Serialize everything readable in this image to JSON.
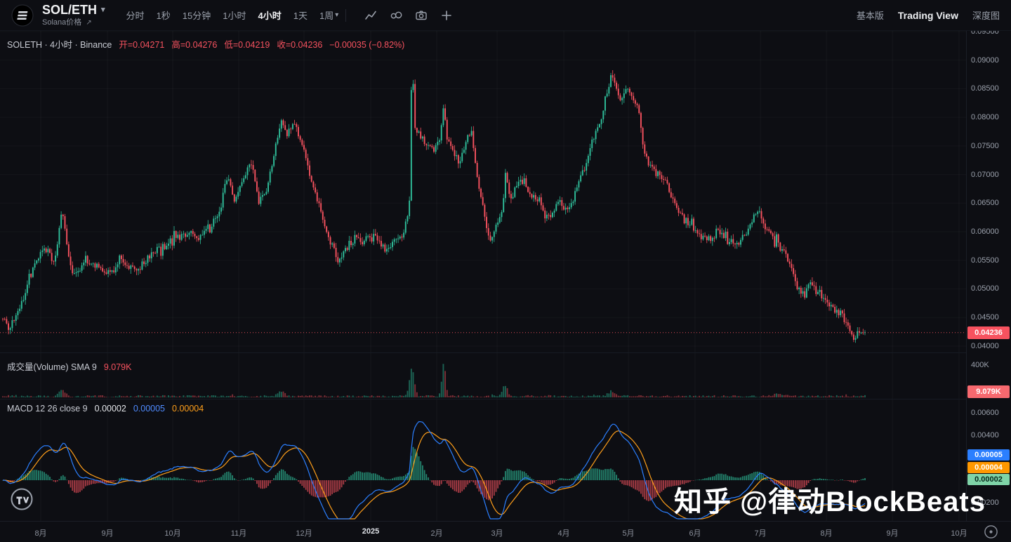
{
  "toolbar": {
    "symbol": "SOL/ETH",
    "symbol_caret": "▾",
    "subtitle": "Solana价格",
    "subtitle_arrow": "↗",
    "timeframes": [
      "分时",
      "1秒",
      "15分钟",
      "1小时",
      "4小时",
      "1天",
      "1周"
    ],
    "active_timeframe": "4小时",
    "timeframe_caret": "▾",
    "right_links": [
      "基本版",
      "Trading View",
      "深度图"
    ]
  },
  "legend": {
    "main": {
      "title": "SOLETH · 4小时 · Binance",
      "open": "开=0.04271",
      "high": "高=0.04276",
      "low": "低=0.04219",
      "close": "收=0.04236",
      "change": "−0.00035 (−0.82%)"
    },
    "volume": {
      "title": "成交量(Volume) SMA 9",
      "value": "9.079K"
    },
    "macd": {
      "title": "MACD 12 26 close 9",
      "hist": "0.00002",
      "macd": "0.00005",
      "signal": "0.00004"
    }
  },
  "axes": {
    "price_ticks": [
      "0.09500",
      "0.09000",
      "0.08500",
      "0.08000",
      "0.07500",
      "0.07000",
      "0.06500",
      "0.06000",
      "0.05500",
      "0.05000",
      "0.04500",
      "0.04000"
    ],
    "volume_tick": "400K",
    "macd_ticks": [
      "0.00600",
      "0.00400",
      "0.00200"
    ],
    "time_labels": [
      "8月",
      "9月",
      "10月",
      "11月",
      "12月",
      "2025",
      "2月",
      "3月",
      "4月",
      "5月",
      "6月",
      "7月",
      "8月",
      "9月",
      "10月"
    ]
  },
  "badges": {
    "price": "0.04236",
    "volume": "9.079K",
    "macd_line": "0.00005",
    "macd_signal": "0.00004",
    "macd_hist": "0.00002"
  },
  "watermark": "知乎 @律动BlockBeats",
  "colors": {
    "up": "#2fbf9b",
    "down": "#f7525f",
    "macd_line": "#2b7fff",
    "signal_line": "#ff9f1a",
    "hist_up": "#2fbf9b",
    "hist_down": "#f7525f",
    "price_badge": "#f7525f",
    "volume_badge": "#f7696f",
    "macd_badge": "#2b7fff",
    "signal_badge": "#ff9800",
    "hist_badge": "#7fd4a8",
    "hist_badge_text": "#06281b",
    "current_price_line": "#f7525f"
  },
  "chart_data": {
    "type": "candlestick",
    "symbol": "SOLETH",
    "interval": "4小时",
    "exchange": "Binance",
    "panes": [
      "price",
      "volume",
      "macd"
    ],
    "price_range": [
      0.04,
      0.095
    ],
    "last_price": 0.04236,
    "ohlc_last": {
      "open": 0.04271,
      "high": 0.04276,
      "low": 0.04219,
      "close": 0.04236,
      "change": -0.00035,
      "change_pct": -0.82
    },
    "candle_count": 459,
    "anchors": [
      [
        0.0,
        0.0448
      ],
      [
        0.008,
        0.0432
      ],
      [
        0.02,
        0.0465
      ],
      [
        0.034,
        0.054
      ],
      [
        0.048,
        0.0575
      ],
      [
        0.06,
        0.0545
      ],
      [
        0.069,
        0.0638
      ],
      [
        0.076,
        0.0555
      ],
      [
        0.082,
        0.052
      ],
      [
        0.095,
        0.0552
      ],
      [
        0.11,
        0.0542
      ],
      [
        0.125,
        0.0528
      ],
      [
        0.14,
        0.055
      ],
      [
        0.155,
        0.0528
      ],
      [
        0.17,
        0.056
      ],
      [
        0.185,
        0.0572
      ],
      [
        0.2,
        0.059
      ],
      [
        0.215,
        0.0598
      ],
      [
        0.228,
        0.0588
      ],
      [
        0.24,
        0.0605
      ],
      [
        0.252,
        0.064
      ],
      [
        0.26,
        0.0698
      ],
      [
        0.268,
        0.0652
      ],
      [
        0.277,
        0.069
      ],
      [
        0.288,
        0.072
      ],
      [
        0.297,
        0.0655
      ],
      [
        0.307,
        0.068
      ],
      [
        0.318,
        0.076
      ],
      [
        0.323,
        0.0798
      ],
      [
        0.33,
        0.077
      ],
      [
        0.338,
        0.0795
      ],
      [
        0.348,
        0.0745
      ],
      [
        0.358,
        0.069
      ],
      [
        0.367,
        0.0648
      ],
      [
        0.378,
        0.059
      ],
      [
        0.388,
        0.0545
      ],
      [
        0.398,
        0.0572
      ],
      [
        0.41,
        0.0592
      ],
      [
        0.422,
        0.0585
      ],
      [
        0.432,
        0.0592
      ],
      [
        0.444,
        0.0565
      ],
      [
        0.455,
        0.0583
      ],
      [
        0.465,
        0.06
      ],
      [
        0.4715,
        0.0638
      ],
      [
        0.4745,
        0.0905
      ],
      [
        0.478,
        0.0788
      ],
      [
        0.484,
        0.0768
      ],
      [
        0.492,
        0.0752
      ],
      [
        0.5,
        0.0742
      ],
      [
        0.509,
        0.0775
      ],
      [
        0.5115,
        0.0825
      ],
      [
        0.515,
        0.0762
      ],
      [
        0.522,
        0.0742
      ],
      [
        0.53,
        0.0718
      ],
      [
        0.538,
        0.076
      ],
      [
        0.544,
        0.0772
      ],
      [
        0.552,
        0.0672
      ],
      [
        0.558,
        0.0638
      ],
      [
        0.565,
        0.0578
      ],
      [
        0.572,
        0.0608
      ],
      [
        0.58,
        0.0642
      ],
      [
        0.5825,
        0.07
      ],
      [
        0.588,
        0.0658
      ],
      [
        0.596,
        0.0678
      ],
      [
        0.604,
        0.0692
      ],
      [
        0.612,
        0.0662
      ],
      [
        0.62,
        0.0655
      ],
      [
        0.628,
        0.0628
      ],
      [
        0.636,
        0.0622
      ],
      [
        0.645,
        0.0658
      ],
      [
        0.652,
        0.0642
      ],
      [
        0.66,
        0.0645
      ],
      [
        0.668,
        0.069
      ],
      [
        0.676,
        0.0715
      ],
      [
        0.684,
        0.0758
      ],
      [
        0.693,
        0.079
      ],
      [
        0.7,
        0.0835
      ],
      [
        0.706,
        0.0872
      ],
      [
        0.712,
        0.0845
      ],
      [
        0.718,
        0.0832
      ],
      [
        0.724,
        0.0852
      ],
      [
        0.73,
        0.0828
      ],
      [
        0.737,
        0.0818
      ],
      [
        0.744,
        0.0738
      ],
      [
        0.752,
        0.0712
      ],
      [
        0.76,
        0.0698
      ],
      [
        0.768,
        0.0688
      ],
      [
        0.776,
        0.0662
      ],
      [
        0.784,
        0.0632
      ],
      [
        0.792,
        0.0618
      ],
      [
        0.8,
        0.0608
      ],
      [
        0.81,
        0.0592
      ],
      [
        0.82,
        0.0588
      ],
      [
        0.83,
        0.0602
      ],
      [
        0.84,
        0.0585
      ],
      [
        0.85,
        0.0578
      ],
      [
        0.862,
        0.0598
      ],
      [
        0.872,
        0.0628
      ],
      [
        0.877,
        0.0643
      ],
      [
        0.884,
        0.0608
      ],
      [
        0.892,
        0.059
      ],
      [
        0.9,
        0.0578
      ],
      [
        0.908,
        0.0558
      ],
      [
        0.916,
        0.0528
      ],
      [
        0.924,
        0.0495
      ],
      [
        0.929,
        0.0478
      ],
      [
        0.935,
        0.0512
      ],
      [
        0.943,
        0.0498
      ],
      [
        0.951,
        0.0488
      ],
      [
        0.959,
        0.0472
      ],
      [
        0.967,
        0.0462
      ],
      [
        0.975,
        0.0455
      ],
      [
        0.982,
        0.0432
      ],
      [
        0.987,
        0.0412
      ],
      [
        0.993,
        0.0428
      ],
      [
        1.0,
        0.0424
      ]
    ],
    "volume": {
      "axis_max": 400000,
      "sma_label": "9.079K",
      "last": 9079,
      "base_range": [
        3000,
        28000
      ],
      "spikes": [
        {
          "t": 0.4745,
          "v": 360000,
          "w": 0.004
        },
        {
          "t": 0.5115,
          "v": 430000,
          "w": 0.003
        },
        {
          "t": 0.5825,
          "v": 140000,
          "w": 0.004
        },
        {
          "t": 0.069,
          "v": 80000,
          "w": 0.005
        },
        {
          "t": 0.323,
          "v": 60000,
          "w": 0.005
        },
        {
          "t": 0.706,
          "v": 55000,
          "w": 0.006
        },
        {
          "t": 0.9,
          "v": 30000,
          "w": 0.01
        }
      ]
    },
    "macd": {
      "params": [
        12,
        26,
        9
      ],
      "last": {
        "macd": 5e-05,
        "signal": 4e-05,
        "hist": 2e-05
      },
      "axis_step": 0.002,
      "peak": 0.006
    }
  }
}
